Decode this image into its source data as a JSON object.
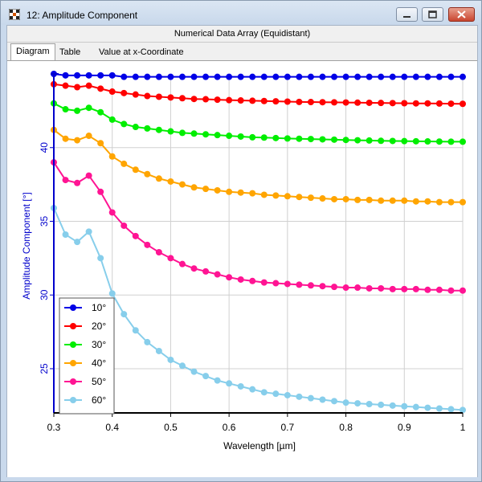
{
  "window": {
    "title": "12: Amplitude Component",
    "header": "Numerical Data Array (Equidistant)"
  },
  "tabs": [
    {
      "label": "Diagram",
      "active": true
    },
    {
      "label": "Table",
      "active": false
    },
    {
      "label": "Value at x-Coordinate",
      "active": false
    }
  ],
  "chart_data": {
    "type": "line",
    "xlabel": "Wavelength [µm]",
    "ylabel": "Amplitude Component [°]",
    "xlim": [
      0.3,
      1.0
    ],
    "ylim": [
      22,
      45
    ],
    "xticks": [
      "0.3",
      "0.4",
      "0.5",
      "0.6",
      "0.7",
      "0.8",
      "0.9",
      "1"
    ],
    "yticks": [
      "25",
      "30",
      "35",
      "40"
    ],
    "grid": true,
    "legend_position": "bottom-left",
    "x": [
      0.3,
      0.32,
      0.34,
      0.36,
      0.38,
      0.4,
      0.42,
      0.44,
      0.46,
      0.48,
      0.5,
      0.52,
      0.54,
      0.56,
      0.58,
      0.6,
      0.62,
      0.64,
      0.66,
      0.68,
      0.7,
      0.72,
      0.74,
      0.76,
      0.78,
      0.8,
      0.82,
      0.84,
      0.86,
      0.88,
      0.9,
      0.92,
      0.94,
      0.96,
      0.98,
      1.0
    ],
    "series": [
      {
        "name": "10°",
        "color": "#0000e6",
        "values": [
          45.0,
          44.9,
          44.9,
          44.9,
          44.9,
          44.9,
          44.8,
          44.8,
          44.8,
          44.8,
          44.8,
          44.8,
          44.8,
          44.8,
          44.8,
          44.8,
          44.8,
          44.8,
          44.8,
          44.8,
          44.8,
          44.8,
          44.8,
          44.8,
          44.8,
          44.8,
          44.8,
          44.8,
          44.8,
          44.8,
          44.8,
          44.8,
          44.8,
          44.8,
          44.8,
          44.8
        ]
      },
      {
        "name": "20°",
        "color": "#ff0000",
        "values": [
          44.3,
          44.2,
          44.1,
          44.2,
          44.0,
          43.8,
          43.7,
          43.6,
          43.5,
          43.45,
          43.4,
          43.35,
          43.3,
          43.28,
          43.25,
          43.22,
          43.2,
          43.18,
          43.16,
          43.14,
          43.12,
          43.1,
          43.09,
          43.08,
          43.07,
          43.06,
          43.05,
          43.04,
          43.03,
          43.02,
          43.01,
          43.0,
          43.0,
          42.99,
          42.98,
          42.97
        ]
      },
      {
        "name": "30°",
        "color": "#00ee00",
        "values": [
          43.0,
          42.6,
          42.5,
          42.7,
          42.4,
          41.9,
          41.6,
          41.4,
          41.3,
          41.2,
          41.1,
          41.0,
          40.95,
          40.9,
          40.85,
          40.8,
          40.75,
          40.7,
          40.68,
          40.65,
          40.62,
          40.6,
          40.58,
          40.56,
          40.54,
          40.52,
          40.5,
          40.48,
          40.46,
          40.45,
          40.44,
          40.43,
          40.42,
          40.41,
          40.4,
          40.4
        ]
      },
      {
        "name": "40°",
        "color": "#ffa500",
        "values": [
          41.2,
          40.6,
          40.5,
          40.8,
          40.3,
          39.4,
          38.9,
          38.5,
          38.2,
          37.9,
          37.7,
          37.5,
          37.3,
          37.2,
          37.1,
          37.0,
          36.95,
          36.9,
          36.8,
          36.75,
          36.7,
          36.65,
          36.6,
          36.55,
          36.5,
          36.5,
          36.45,
          36.45,
          36.4,
          36.4,
          36.4,
          36.35,
          36.35,
          36.3,
          36.3,
          36.3
        ]
      },
      {
        "name": "50°",
        "color": "#ff1493",
        "values": [
          39.0,
          37.8,
          37.6,
          38.1,
          37.0,
          35.6,
          34.7,
          34.0,
          33.4,
          32.9,
          32.5,
          32.1,
          31.8,
          31.6,
          31.4,
          31.2,
          31.05,
          30.95,
          30.85,
          30.8,
          30.75,
          30.7,
          30.65,
          30.6,
          30.55,
          30.5,
          30.5,
          30.45,
          30.45,
          30.4,
          30.4,
          30.4,
          30.35,
          30.35,
          30.3,
          30.3
        ]
      },
      {
        "name": "60°",
        "color": "#87ceeb",
        "values": [
          35.9,
          34.1,
          33.6,
          34.3,
          32.5,
          30.1,
          28.7,
          27.6,
          26.8,
          26.2,
          25.6,
          25.2,
          24.8,
          24.5,
          24.2,
          24.0,
          23.8,
          23.6,
          23.4,
          23.3,
          23.2,
          23.1,
          23.0,
          22.9,
          22.8,
          22.7,
          22.65,
          22.6,
          22.55,
          22.5,
          22.45,
          22.4,
          22.35,
          22.3,
          22.25,
          22.2
        ]
      }
    ]
  }
}
